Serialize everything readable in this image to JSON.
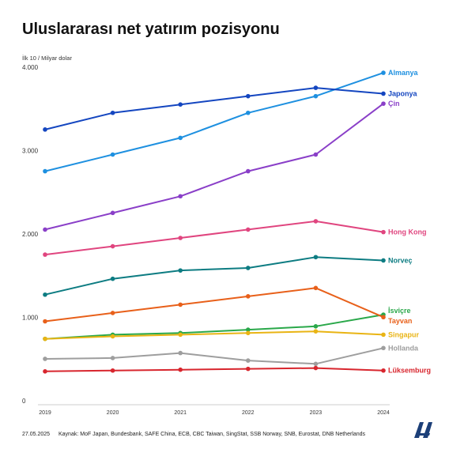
{
  "header": {
    "title": "Uluslararası net yatırım pozisyonu",
    "unit": "İlk 10 / Milyar dolar"
  },
  "footer": {
    "date": "27.05.2025",
    "source": "Kaynak: MoF Japan, Bundesbank, SAFE China, ECB, CBC Taiwan, SingStat, SSB Norway, SNB, Eurostat, DNB Netherlands"
  },
  "logo_icon": "aa-logo-icon",
  "chart_data": {
    "type": "line",
    "title": "Uluslararası net yatırım pozisyonu",
    "ylabel": "İlk 10 / Milyar dolar",
    "xlabel": "",
    "x": [
      "2019",
      "2020",
      "2021",
      "2022",
      "2023",
      "2024"
    ],
    "ylim": [
      0,
      4000
    ],
    "yticks": [
      {
        "value": 0,
        "label": "0"
      },
      {
        "value": 1000,
        "label": "1.000"
      },
      {
        "value": 2000,
        "label": "2.000"
      },
      {
        "value": 3000,
        "label": "3.000"
      },
      {
        "value": 4000,
        "label": "4.000"
      }
    ],
    "grid": false,
    "legend": "end-of-line labels",
    "series": [
      {
        "name": "Almanya",
        "color": "#1e90e0",
        "values": [
          2800,
          3000,
          3200,
          3500,
          3700,
          3980
        ]
      },
      {
        "name": "Japonya",
        "color": "#1446c0",
        "values": [
          3300,
          3500,
          3600,
          3700,
          3800,
          3730
        ]
      },
      {
        "name": "Çin",
        "color": "#8a3fc8",
        "values": [
          2100,
          2300,
          2500,
          2800,
          3000,
          3610
        ]
      },
      {
        "name": "Hong Kong",
        "color": "#e0457f",
        "values": [
          1800,
          1900,
          2000,
          2100,
          2200,
          2070
        ]
      },
      {
        "name": "Norveç",
        "color": "#0d7c82",
        "values": [
          1320,
          1510,
          1610,
          1640,
          1770,
          1730
        ]
      },
      {
        "name": "İsviçre",
        "color": "#2aa84a",
        "values": [
          790,
          840,
          860,
          900,
          940,
          1080
        ]
      },
      {
        "name": "Tayvan",
        "color": "#e8601a",
        "values": [
          1000,
          1100,
          1200,
          1300,
          1400,
          1050
        ]
      },
      {
        "name": "Singapur",
        "color": "#e9b414",
        "values": [
          790,
          820,
          840,
          860,
          880,
          840
        ]
      },
      {
        "name": "Hollanda",
        "color": "#9e9e9e",
        "values": [
          550,
          560,
          620,
          530,
          490,
          680
        ]
      },
      {
        "name": "Lüksemburg",
        "color": "#d8262e",
        "values": [
          400,
          410,
          420,
          430,
          440,
          410
        ]
      }
    ]
  }
}
